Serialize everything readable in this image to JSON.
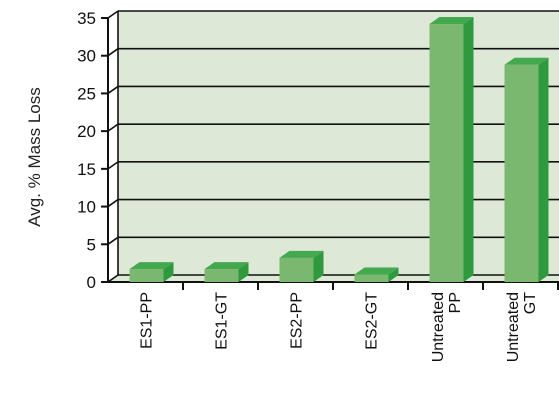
{
  "chart_data": {
    "type": "bar",
    "style": "3d",
    "title": "",
    "xlabel": "",
    "ylabel": "Avg. % Mass Loss",
    "ylim": [
      0,
      35
    ],
    "yticks": [
      0,
      5,
      10,
      15,
      20,
      25,
      30,
      35
    ],
    "grid": true,
    "categories": [
      [
        "ES1-PP"
      ],
      [
        "ES1-GT"
      ],
      [
        "ES2-PP"
      ],
      [
        "ES2-GT"
      ],
      [
        "Untreated",
        "PP"
      ],
      [
        "Untreated",
        "GT"
      ]
    ],
    "values": [
      1.7,
      1.7,
      3.2,
      1.0,
      34.2,
      28.8
    ]
  },
  "colors": {
    "plot_background": "#dde8d6",
    "bar_front": "#7bb86f",
    "bar_side": "#2e9a3e",
    "bar_top": "#43a84e",
    "gridline": "#111111",
    "axis": "#111111"
  }
}
